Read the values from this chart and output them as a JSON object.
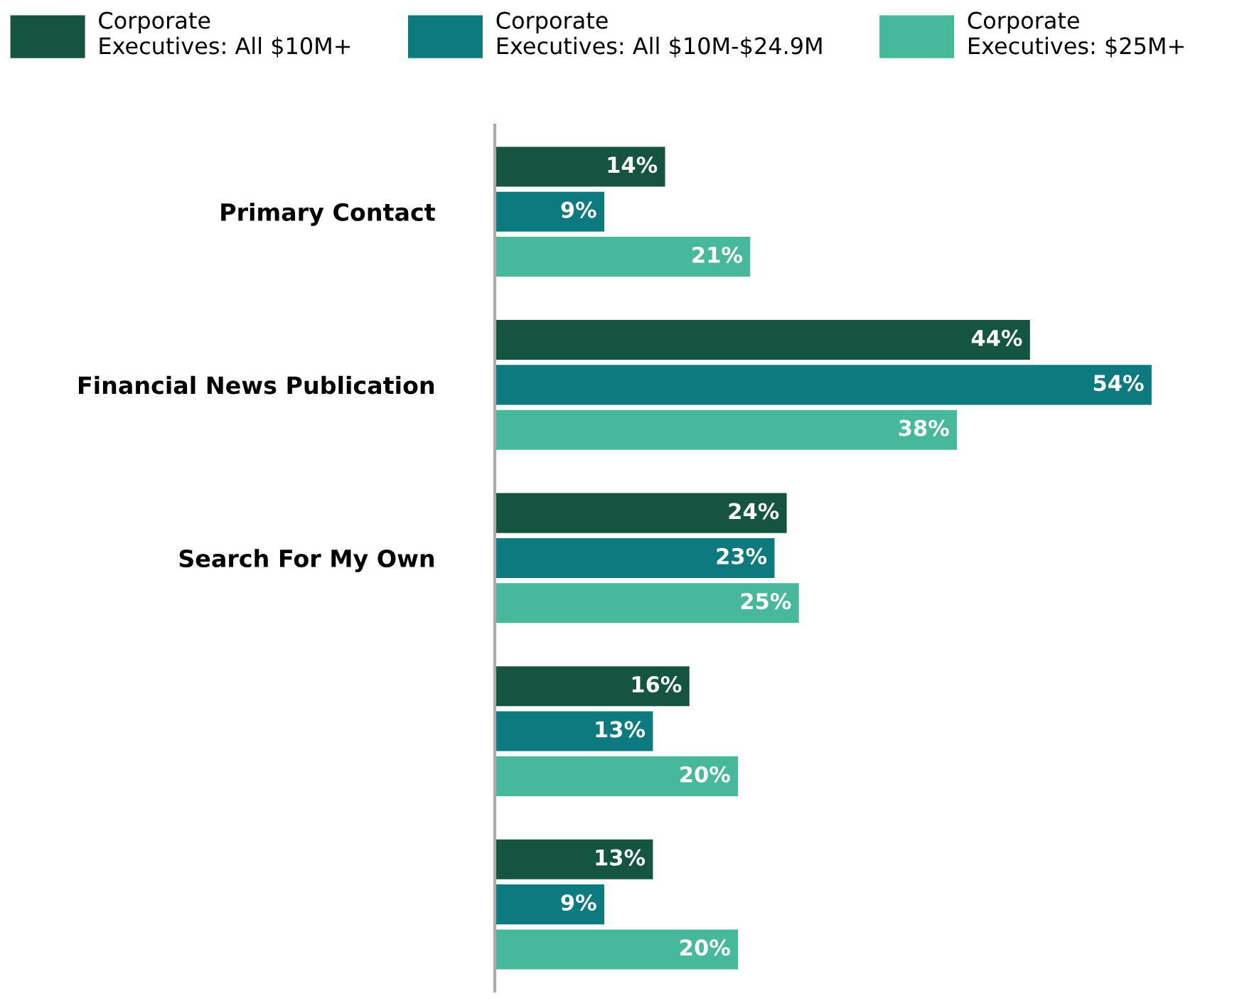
{
  "chart_data": {
    "type": "bar",
    "orientation": "horizontal",
    "categories": [
      "Primary Contact",
      "Financial News Publication",
      "Search For My Own",
      null,
      null
    ],
    "series": [
      {
        "name": "Corporate Executives: All $10M+",
        "color": "#145440",
        "values": [
          14,
          44,
          24,
          16,
          13
        ],
        "value_labels": [
          "14%",
          "44%",
          "24%",
          "16%",
          "13%"
        ]
      },
      {
        "name": "Corporate Executives: All $10M-$24.9M",
        "color": "#0d7a80",
        "values": [
          9,
          54,
          23,
          13,
          9
        ],
        "value_labels": [
          "9%",
          "54%",
          "23%",
          "13%",
          "9%"
        ]
      },
      {
        "name": "Corporate Executives: $25M+",
        "color": "#48b89b",
        "values": [
          21,
          38,
          25,
          20,
          20
        ],
        "value_labels": [
          "21%",
          "38%",
          "25%",
          "20%",
          "20%"
        ]
      }
    ],
    "legend": "top",
    "grid": false
  }
}
